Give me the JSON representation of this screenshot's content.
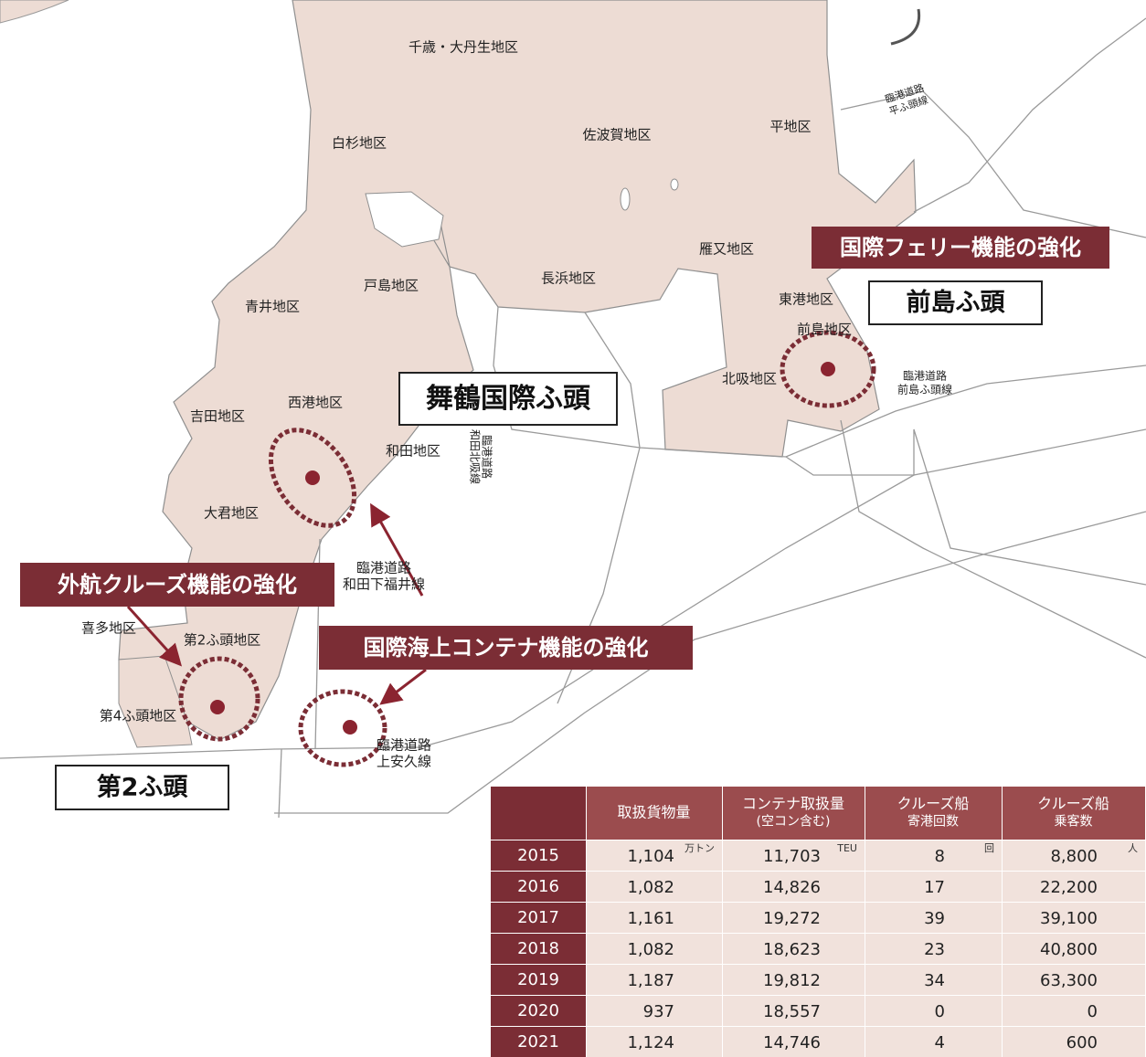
{
  "map": {
    "districts": [
      "千歳・大丹生地区",
      "白杉地区",
      "佐波賀地区",
      "平地区",
      "雁又地区",
      "戸島地区",
      "長浜地区",
      "青井地区",
      "東港地区",
      "前島地区",
      "北吸地区",
      "西港地区",
      "吉田地区",
      "和田地区",
      "大君地区",
      "喜多地区",
      "第2ふ頭地区",
      "第4ふ頭地区"
    ],
    "roads": [
      [
        "臨港道路",
        "平ふ頭線"
      ],
      [
        "臨港道路",
        "前島ふ頭線"
      ],
      [
        "臨港道路",
        "和田北吸線"
      ],
      [
        "臨港道路",
        "和田下福井線"
      ],
      [
        "臨港道路",
        "上安久線"
      ]
    ],
    "callouts": [
      "国際フェリー機能の強化",
      "外航クルーズ機能の強化",
      "国際海上コンテナ機能の強化"
    ],
    "facilities": [
      "前島ふ頭",
      "舞鶴国際ふ頭",
      "第2ふ頭"
    ]
  },
  "table": {
    "headers": [
      [
        "取扱貨物量"
      ],
      [
        "コンテナ取扱量",
        "(空コン含む)"
      ],
      [
        "クルーズ船",
        "寄港回数"
      ],
      [
        "クルーズ船",
        "乗客数"
      ]
    ],
    "units": [
      "万トン",
      "TEU",
      "回",
      "人"
    ],
    "rows": [
      {
        "year": "2015",
        "values": [
          "1,104",
          "11,703",
          "8",
          "8,800"
        ]
      },
      {
        "year": "2016",
        "values": [
          "1,082",
          "14,826",
          "17",
          "22,200"
        ]
      },
      {
        "year": "2017",
        "values": [
          "1,161",
          "19,272",
          "39",
          "39,100"
        ]
      },
      {
        "year": "2018",
        "values": [
          "1,082",
          "18,623",
          "23",
          "40,800"
        ]
      },
      {
        "year": "2019",
        "values": [
          "1,187",
          "19,812",
          "34",
          "63,300"
        ]
      },
      {
        "year": "2020",
        "values": [
          "937",
          "18,557",
          "0",
          "0"
        ]
      },
      {
        "year": "2021",
        "values": [
          "1,124",
          "14,746",
          "4",
          "600"
        ]
      }
    ]
  }
}
